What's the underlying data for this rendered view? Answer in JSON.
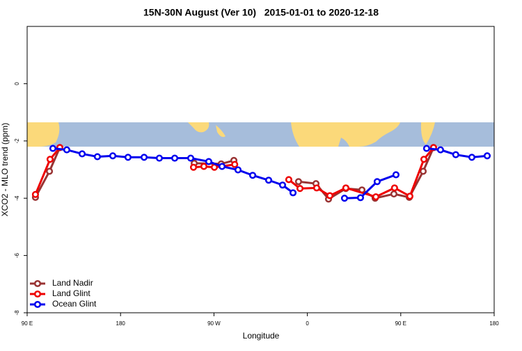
{
  "chart_data": {
    "type": "line",
    "title": "15N-30N August (Ver 10)   2015-01-01 to 2020-12-18",
    "x_label": "Longitude",
    "y_label": "XCO2 - MLO trend (ppm)",
    "xlim": [
      90,
      540
    ],
    "xticks": [
      {
        "value": 90,
        "label": "90 E"
      },
      180,
      {
        "value": 270,
        "label": "90 W"
      },
      {
        "value": 360,
        "label": "0"
      },
      {
        "value": 450,
        "label": "90 E"
      },
      {
        "value": 540,
        "label": "180"
      }
    ],
    "ylim": [
      -8,
      2
    ],
    "yticks": [
      -8,
      -6,
      -4,
      -2,
      0
    ],
    "legend": "bottom-left",
    "series": [
      {
        "name": "Land Nadir",
        "color": "#993333",
        "x": [
          98,
          111.5,
          121.5,
          null,
          251,
          277,
          289.2,
          null,
          351.5,
          368.3,
          380.4,
          397.1,
          412.6,
          425.3,
          443.4,
          458.2,
          471.6,
          481.6
        ],
        "values": [
          -3.97,
          -3.06,
          -2.23,
          null,
          -2.78,
          -2.8,
          -2.68,
          null,
          -3.42,
          -3.49,
          -4.03,
          -3.66,
          -3.71,
          -4.0,
          -3.85,
          -3.97,
          -3.06,
          -2.23
        ]
      },
      {
        "name": "Land Glint",
        "color": "#ee0000",
        "x": [
          98,
          112.1,
          121.5,
          null,
          250.3,
          260.3,
          270.4,
          290,
          null,
          342.1,
          352.9,
          369,
          381.7,
          397.1,
          426,
          444,
          458.8,
          472.3,
          481.6
        ],
        "values": [
          -3.87,
          -2.64,
          -2.23,
          null,
          -2.92,
          -2.89,
          -2.92,
          -2.82,
          null,
          -3.35,
          -3.66,
          -3.64,
          -3.91,
          -3.64,
          -3.95,
          -3.64,
          -3.93,
          -2.64,
          -2.23
        ]
      },
      {
        "name": "Ocean Glint",
        "color": "#0000ee",
        "x": [
          114.8,
          128.2,
          143,
          157.7,
          172.5,
          187.2,
          202.7,
          217.4,
          232.2,
          247.6,
          265,
          277.8,
          293.2,
          307.3,
          322.7,
          336.1,
          346.2,
          null,
          395.8,
          411.2,
          427.3,
          445.4,
          null,
          474.9,
          488.3,
          503,
          518.5,
          533.3
        ],
        "values": [
          -2.26,
          -2.31,
          -2.45,
          -2.55,
          -2.52,
          -2.57,
          -2.57,
          -2.6,
          -2.6,
          -2.6,
          -2.72,
          -2.89,
          -3.01,
          -3.2,
          -3.37,
          -3.54,
          -3.81,
          null,
          -4.0,
          -3.98,
          -3.42,
          -3.18,
          null,
          -2.26,
          -2.31,
          -2.48,
          -2.57,
          -2.52
        ]
      }
    ]
  }
}
